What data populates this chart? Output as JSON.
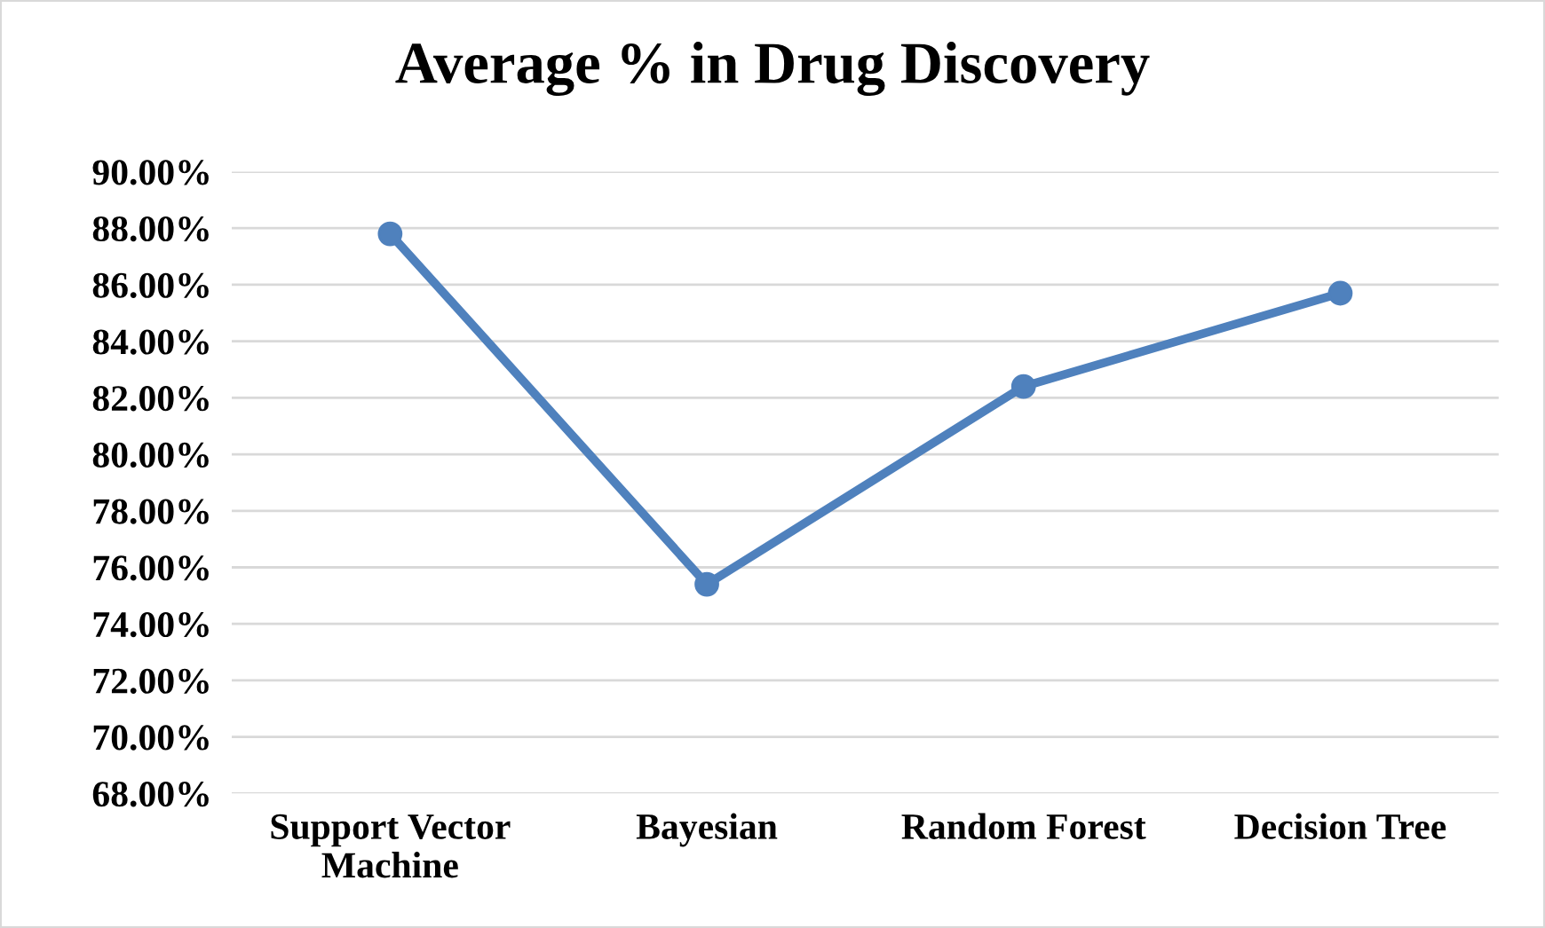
{
  "chart_data": {
    "type": "line",
    "title": "Average % in Drug Discovery",
    "categories": [
      "Support Vector\nMachine",
      "Bayesian",
      "Random Forest",
      "Decision Tree"
    ],
    "series": [
      {
        "color": "#4f81bd",
        "values": [
          87.8,
          75.4,
          82.4,
          85.7
        ]
      }
    ],
    "ylim": [
      68,
      90
    ],
    "yticks": [
      {
        "value": 68,
        "label": "68.00%"
      },
      {
        "value": 70,
        "label": "70.00%"
      },
      {
        "value": 72,
        "label": "72.00%"
      },
      {
        "value": 74,
        "label": "74.00%"
      },
      {
        "value": 76,
        "label": "76.00%"
      },
      {
        "value": 78,
        "label": "78.00%"
      },
      {
        "value": 80,
        "label": "80.00%"
      },
      {
        "value": 82,
        "label": "82.00%"
      },
      {
        "value": 84,
        "label": "84.00%"
      },
      {
        "value": 86,
        "label": "86.00%"
      },
      {
        "value": 88,
        "label": "88.00%"
      },
      {
        "value": 90,
        "label": "90.00%"
      }
    ],
    "grid": "y",
    "marker": "circle",
    "line_style": "solid",
    "legend": false
  }
}
